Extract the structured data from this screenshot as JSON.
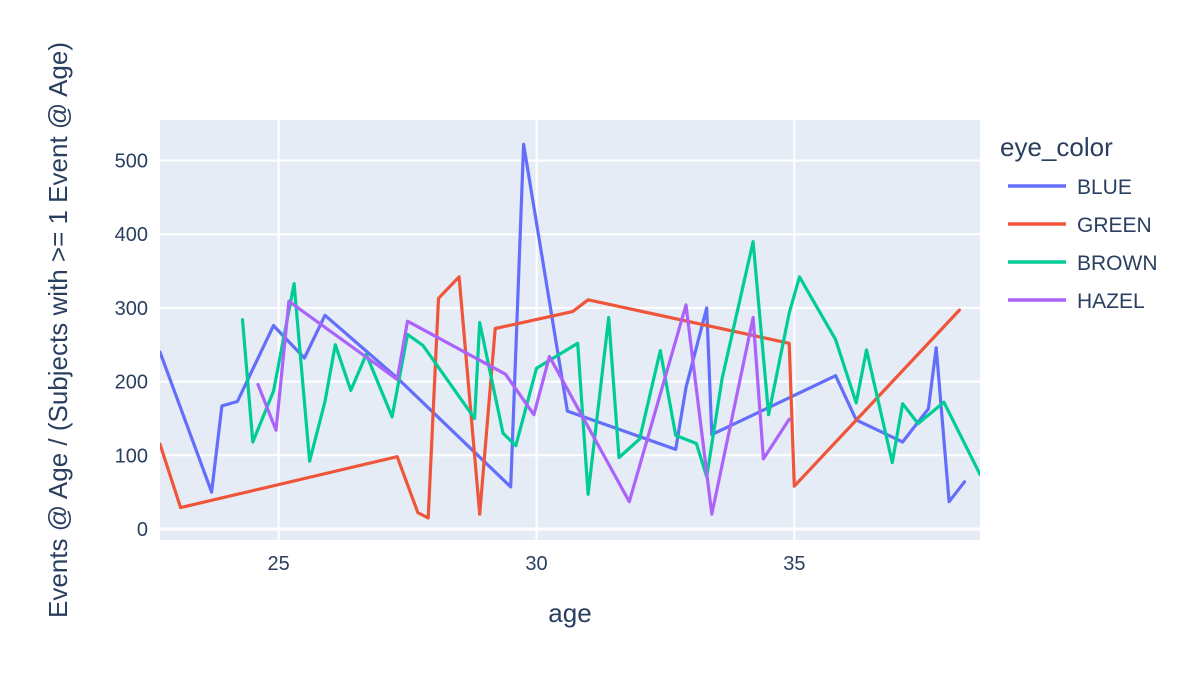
{
  "chart_data": {
    "type": "line",
    "xlabel": "age",
    "ylabel": "Events @ Age / (Subjects with >= 1 Event @ Age)",
    "xlim": [
      22.7,
      38.6
    ],
    "ylim": [
      -15,
      555
    ],
    "xticks": [
      25,
      30,
      35
    ],
    "yticks": [
      0,
      100,
      200,
      300,
      400,
      500
    ],
    "grid": true,
    "background": "#e5ecf6",
    "legend": {
      "title": "eye_color",
      "placement": "right"
    },
    "series": [
      {
        "name": "BLUE",
        "color": "#636efa",
        "x": [
          22.7,
          23.7,
          23.9,
          24.2,
          24.9,
          25.5,
          25.9,
          27.3,
          29.5,
          29.75,
          30.6,
          32.7,
          32.9,
          33.3,
          33.4,
          35.8,
          36.2,
          37.1,
          37.6,
          37.75,
          38.0,
          38.3
        ],
        "y": [
          240,
          50,
          167,
          173,
          276,
          232,
          290,
          205,
          57,
          522,
          160,
          108,
          192,
          300,
          128,
          208,
          148,
          118,
          163,
          246,
          37,
          64
        ]
      },
      {
        "name": "GREEN",
        "color": "#EF553B",
        "x": [
          22.7,
          23.1,
          27.3,
          27.7,
          27.9,
          28.1,
          28.5,
          28.9,
          29.2,
          30.7,
          31.0,
          34.9,
          35.0,
          38.2
        ],
        "y": [
          115,
          29,
          98,
          22,
          15,
          313,
          342,
          20,
          272,
          295,
          311,
          252,
          58,
          297
        ]
      },
      {
        "name": "BROWN",
        "color": "#00cc96",
        "x": [
          24.3,
          24.5,
          24.9,
          25.3,
          25.6,
          25.9,
          26.1,
          26.4,
          26.7,
          27.2,
          27.5,
          27.8,
          28.8,
          28.9,
          29.35,
          29.6,
          30.0,
          30.8,
          31.0,
          31.4,
          31.6,
          32.0,
          32.4,
          32.7,
          33.1,
          33.3,
          33.6,
          34.2,
          34.5,
          34.9,
          35.1,
          35.8,
          36.2,
          36.4,
          36.9,
          37.1,
          37.4,
          37.9,
          38.6
        ],
        "y": [
          284,
          118,
          187,
          333,
          92,
          173,
          250,
          188,
          237,
          152,
          264,
          249,
          150,
          280,
          130,
          113,
          218,
          252,
          47,
          287,
          97,
          122,
          242,
          127,
          116,
          71,
          204,
          390,
          155,
          293,
          342,
          257,
          171,
          243,
          90,
          170,
          143,
          172,
          74
        ]
      },
      {
        "name": "HAZEL",
        "color": "#ab63fa",
        "x": [
          24.6,
          24.95,
          25.2,
          27.3,
          27.5,
          29.4,
          29.95,
          30.25,
          31.8,
          32.9,
          33.4,
          34.2,
          34.4,
          34.9
        ],
        "y": [
          196,
          134,
          309,
          203,
          282,
          210,
          155,
          234,
          37,
          304,
          20,
          287,
          95,
          149
        ]
      }
    ]
  }
}
